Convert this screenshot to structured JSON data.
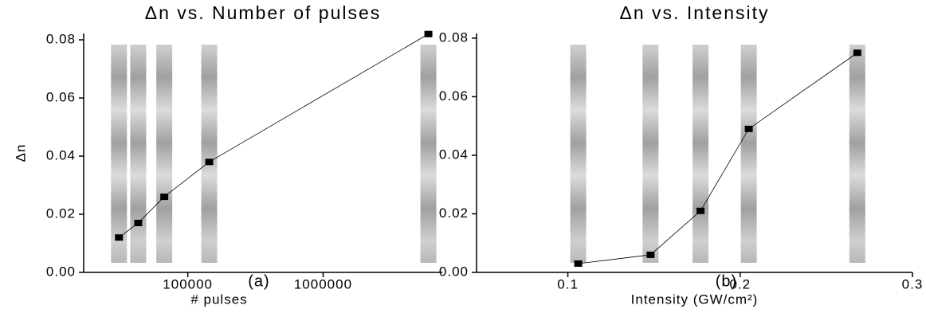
{
  "chart_data": [
    {
      "type": "line",
      "title": "Δn vs. Number of pulses",
      "xlabel": "# pulses",
      "ylabel": "Δn",
      "annotation": "(a)",
      "xscale": "log",
      "x": [
        31000,
        43000,
        67000,
        144000,
        6000000
      ],
      "values": [
        0.012,
        0.017,
        0.026,
        0.038,
        0.082
      ],
      "color": "#000000",
      "xlim": [
        17000,
        7600000
      ],
      "xticks": [
        100000,
        1000000
      ],
      "ylim": [
        0,
        0.0822
      ],
      "yticks": [
        {
          "value": 0,
          "label": "0.00"
        },
        {
          "value": 0.02,
          "label": "0.02"
        },
        {
          "value": 0.04,
          "label": "0.04"
        },
        {
          "value": 0.06,
          "label": "0.06"
        },
        {
          "value": 0.08,
          "label": "0.08"
        }
      ]
    },
    {
      "type": "line",
      "title": "Δn vs. Intensity",
      "xlabel": "Intensity (GW/cm²)",
      "annotation": "(b)",
      "x": [
        0.106,
        0.148,
        0.177,
        0.205,
        0.268
      ],
      "values": [
        0.003,
        0.006,
        0.021,
        0.049,
        0.075
      ],
      "color": "#000000",
      "xlim": [
        0.047,
        0.3
      ],
      "xticks": [
        0.1,
        0.2,
        0.3
      ],
      "ylim": [
        0,
        0.0816
      ],
      "yticks": [
        {
          "value": 0,
          "label": "0.00"
        },
        {
          "value": 0.02,
          "label": "0.02"
        },
        {
          "value": 0.04,
          "label": "0.04"
        },
        {
          "value": 0.06,
          "label": "0.06"
        },
        {
          "value": 0.08,
          "label": "0.08"
        }
      ]
    }
  ]
}
